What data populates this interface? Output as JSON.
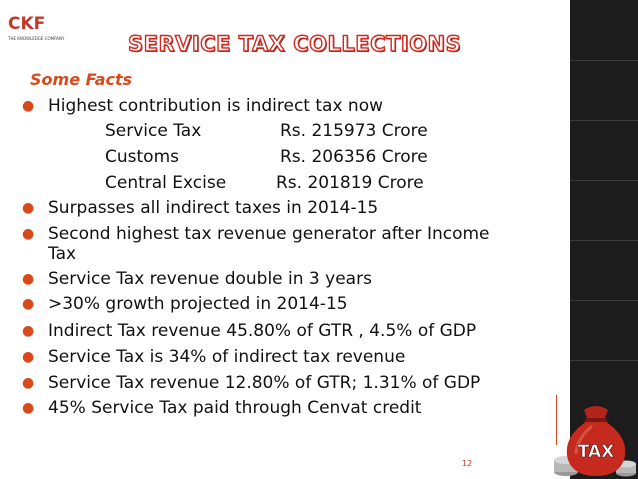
{
  "logo": {
    "mark": "CKF",
    "tagline": "THE KNOWLEDGE COMPANY"
  },
  "title": "SERVICE TAX COLLECTIONS",
  "subtitle": "Some Facts",
  "bullets": [
    "Highest contribution is indirect tax now",
    "Surpasses all indirect taxes in 2014-15",
    "Second highest tax revenue generator after Income",
    "Service Tax revenue double in 3 years",
    ">30%  growth projected in 2014-15",
    "Indirect Tax revenue 45.80% of GTR , 4.5% of GDP",
    "Service Tax is 34% of indirect tax revenue",
    "Service Tax revenue 12.80% of GTR; 1.31% of GDP",
    "45% Service Tax paid through Cenvat credit"
  ],
  "bullet_continuation": "Tax",
  "collections": [
    {
      "label": "Service Tax",
      "value": "Rs. 215973 Crore"
    },
    {
      "label": "Customs",
      "value": "Rs. 206356 Crore"
    },
    {
      "label": "Central Excise",
      "value": "Rs. 201819 Crore"
    }
  ],
  "image_label": "TAX",
  "page_number": "12",
  "colors": {
    "accent": "#d84a1b",
    "title_outline": "#d02a1f",
    "band": "#1c1c1c"
  }
}
